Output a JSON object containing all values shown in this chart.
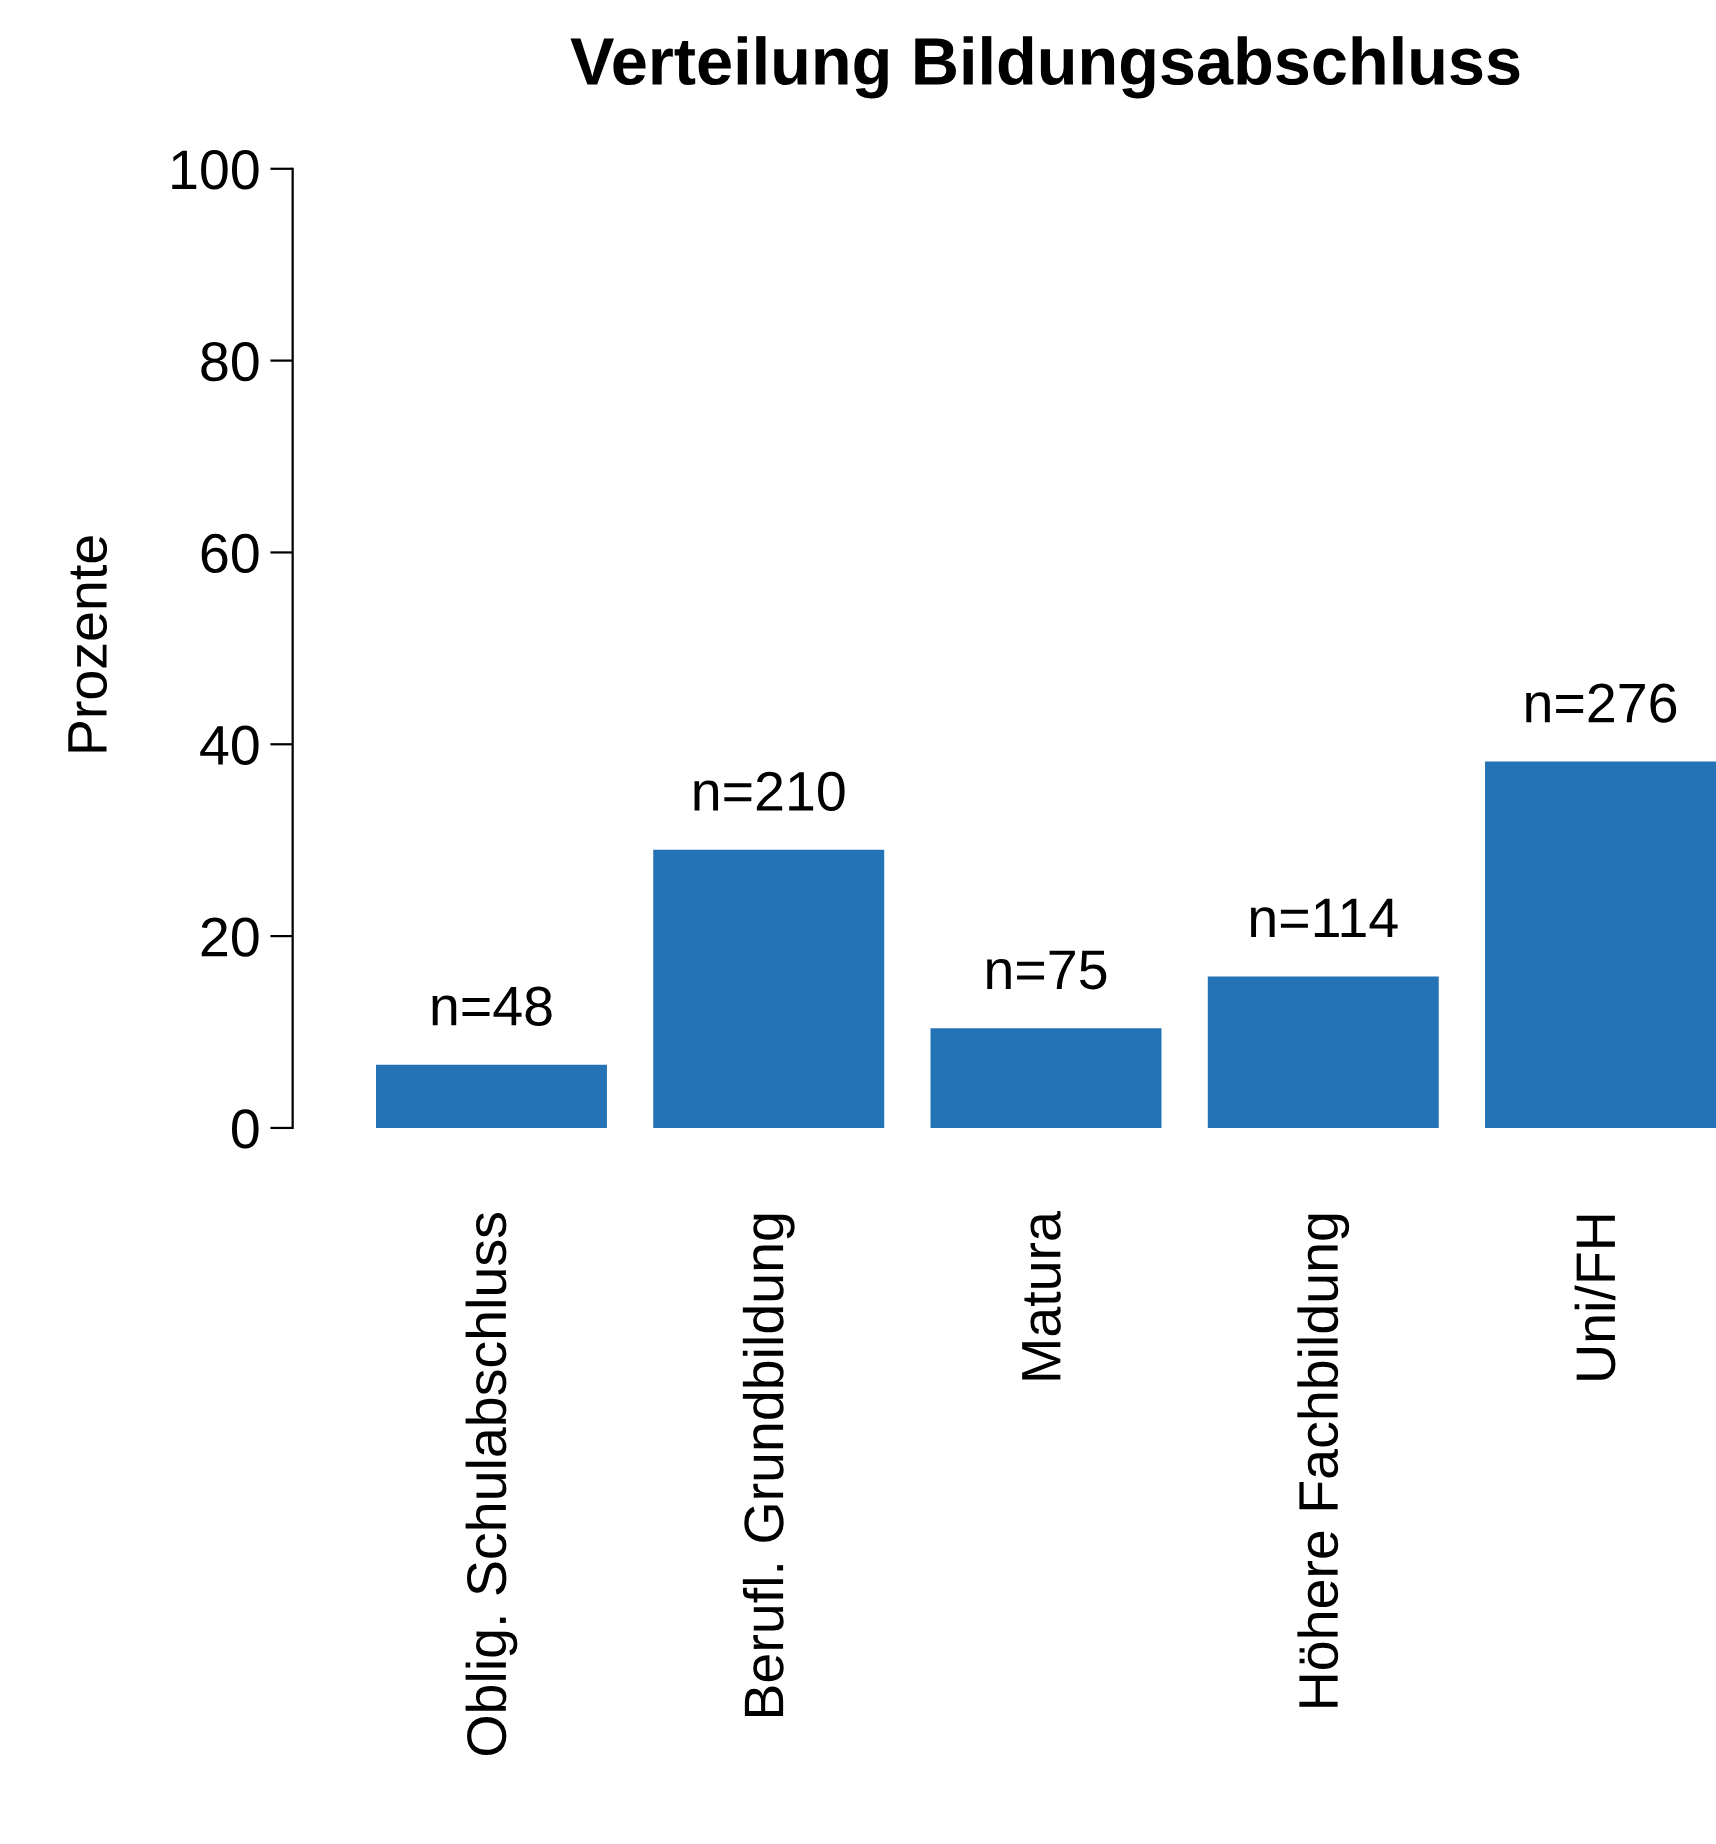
{
  "chart_data": {
    "type": "bar",
    "title": "Verteilung Bildungsabschluss",
    "ylabel": "Prozente",
    "categories": [
      "Oblig. Schulabschluss",
      "Berufl. Grundbildung",
      "Matura",
      "Höhere Fachbildung",
      "Uni/FH"
    ],
    "values": [
      6.6,
      29,
      10.4,
      15.8,
      38.2
    ],
    "annotations": [
      {
        "text": "n=48",
        "x": "Oblig. Schulabschluss",
        "y": 6.6
      },
      {
        "text": "n=210",
        "x": "Berufl. Grundbildung",
        "y": 29
      },
      {
        "text": "n=75",
        "x": "Matura",
        "y": 10.4
      },
      {
        "text": "n=114",
        "x": "Höhere Fachbildung",
        "y": 15.8
      },
      {
        "text": "n=276",
        "x": "Uni/FH",
        "y": 38.2
      }
    ],
    "color": "#2473b6",
    "ylim": [
      0,
      100
    ],
    "yticks": [
      0,
      20,
      40,
      60,
      80,
      100
    ],
    "grid": false,
    "legend": false
  }
}
